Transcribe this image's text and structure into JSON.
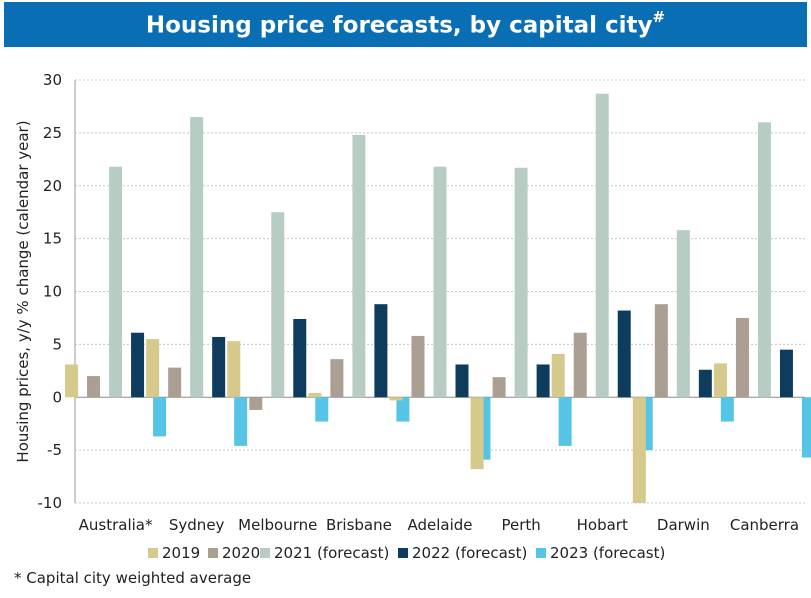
{
  "banner": {
    "title": "Housing price forecasts, by capital city",
    "title_mark": "#"
  },
  "footnote": "* Capital city weighted average",
  "chart_data": {
    "type": "bar",
    "title": "Housing price forecasts, by capital city#",
    "xlabel": "",
    "ylabel": "Housing prices, y/y % change (calendar year)",
    "ylim": [
      -10,
      30
    ],
    "yticks": [
      -10,
      -5,
      0,
      5,
      10,
      15,
      20,
      25,
      30
    ],
    "grid": true,
    "legend_position": "bottom",
    "categories": [
      "Australia*",
      "Sydney",
      "Melbourne",
      "Brisbane",
      "Adelaide",
      "Perth",
      "Hobart",
      "Darwin",
      "Canberra"
    ],
    "series": [
      {
        "name": "2019",
        "color": "#d5c98c",
        "values": [
          3.1,
          5.5,
          5.3,
          0.4,
          -0.3,
          -6.8,
          4.1,
          -10.0,
          3.2
        ]
      },
      {
        "name": "2020",
        "color": "#ab9e92",
        "values": [
          2.0,
          2.8,
          -1.2,
          3.6,
          5.8,
          1.9,
          6.1,
          8.8,
          7.5
        ]
      },
      {
        "name": "2021 (forecast)",
        "color": "#b7cdc4",
        "values": [
          21.8,
          26.5,
          17.5,
          24.8,
          21.8,
          21.7,
          28.7,
          15.8,
          26.0
        ]
      },
      {
        "name": "2022 (forecast)",
        "color": "#0e3c5c",
        "values": [
          6.1,
          5.7,
          7.4,
          8.8,
          3.1,
          3.1,
          8.2,
          2.6,
          4.5
        ]
      },
      {
        "name": "2023 (forecast)",
        "color": "#55c4e6",
        "values": [
          -3.7,
          -4.6,
          -2.3,
          -2.3,
          -5.9,
          -4.6,
          -5.0,
          -2.3,
          -5.7
        ]
      }
    ]
  }
}
